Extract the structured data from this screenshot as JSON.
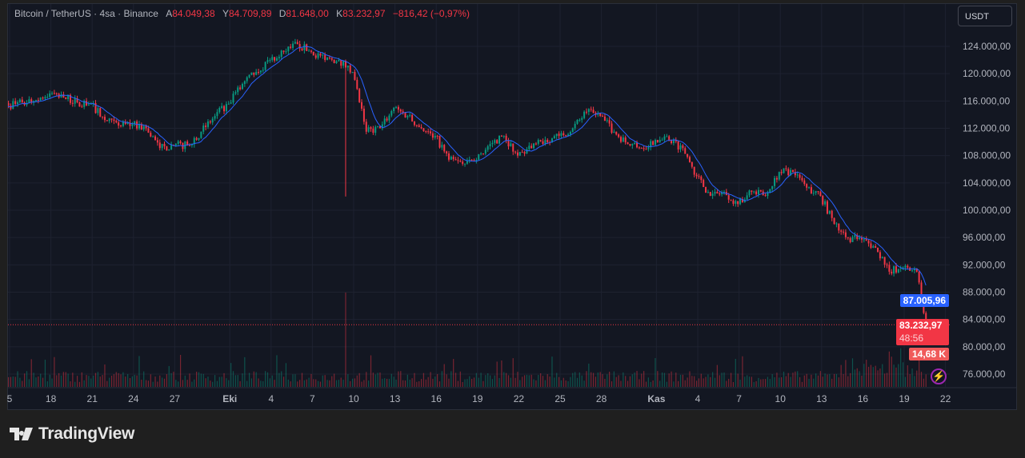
{
  "header": {
    "symbol": "Bitcoin / TetherUS · 4sa · Binance",
    "open_key": "A",
    "open": "84.049,38",
    "high_key": "Y",
    "high": "84.709,89",
    "low_key": "D",
    "low": "81.648,00",
    "close_key": "K",
    "close": "83.232,97",
    "change": "−816,42 (−0,97%)"
  },
  "currency_button": "USDT",
  "badges": {
    "ma_value": "87.005,96",
    "last_price": "83.232,97",
    "countdown": "48:56",
    "volume": "14,68 K"
  },
  "brand": "TradingView",
  "colors": {
    "up": "#089981",
    "down": "#f23645",
    "ma": "#2962ff",
    "grid": "#1e2230"
  },
  "chart_data": {
    "type": "candlestick",
    "title": "Bitcoin / TetherUS · 4sa · Binance",
    "timeframe": "4h",
    "ylim": [
      74000,
      126000
    ],
    "y_ticks": [
      76000,
      80000,
      84000,
      88000,
      92000,
      96000,
      100000,
      104000,
      108000,
      112000,
      116000,
      120000,
      124000
    ],
    "y_tick_labels": [
      "76.000,00",
      "80.000,00",
      "84.000,00",
      "88.000,00",
      "92.000,00",
      "96.000,00",
      "100.000,00",
      "104.000,00",
      "108.000,00",
      "112.000,00",
      "116.000,00",
      "120.000,00",
      "124.000,00"
    ],
    "x_ticks": [
      {
        "day": 0,
        "label": "5"
      },
      {
        "day": 3,
        "label": "18"
      },
      {
        "day": 6,
        "label": "21"
      },
      {
        "day": 9,
        "label": "24"
      },
      {
        "day": 12,
        "label": "27"
      },
      {
        "day": 16,
        "label": "Eki"
      },
      {
        "day": 19,
        "label": "4"
      },
      {
        "day": 22,
        "label": "7"
      },
      {
        "day": 25,
        "label": "10"
      },
      {
        "day": 28,
        "label": "13"
      },
      {
        "day": 31,
        "label": "16"
      },
      {
        "day": 34,
        "label": "19"
      },
      {
        "day": 37,
        "label": "22"
      },
      {
        "day": 40,
        "label": "25"
      },
      {
        "day": 43,
        "label": "28"
      },
      {
        "day": 47,
        "label": "Kas"
      },
      {
        "day": 50,
        "label": "4"
      },
      {
        "day": 53,
        "label": "7"
      },
      {
        "day": 56,
        "label": "10"
      },
      {
        "day": 59,
        "label": "13"
      },
      {
        "day": 62,
        "label": "16"
      },
      {
        "day": 65,
        "label": "19"
      },
      {
        "day": 68,
        "label": "22"
      }
    ],
    "daily_close": [
      115300,
      115800,
      116150,
      117100,
      116500,
      115800,
      115600,
      113200,
      112400,
      112600,
      112000,
      109100,
      109500,
      109500,
      111500,
      113800,
      115600,
      118500,
      120250,
      122000,
      123200,
      124350,
      123200,
      122000,
      122000,
      120250,
      111500,
      112000,
      115000,
      113800,
      112000,
      110900,
      107400,
      106800,
      107400,
      109700,
      110900,
      108000,
      109100,
      110300,
      110900,
      112000,
      114400,
      113800,
      111500,
      109700,
      109100,
      110300,
      110300,
      109100,
      105000,
      102100,
      102700,
      100900,
      102700,
      102100,
      105600,
      105600,
      103300,
      102100,
      98000,
      95900,
      95700,
      94500,
      91000,
      91600,
      91000,
      83233
    ],
    "notable_wick": {
      "day": 25,
      "low": 102000,
      "volume_spike": true
    },
    "last_price": 83232.97,
    "ma_last": 87005.96,
    "volume_last": "14,68 K"
  }
}
